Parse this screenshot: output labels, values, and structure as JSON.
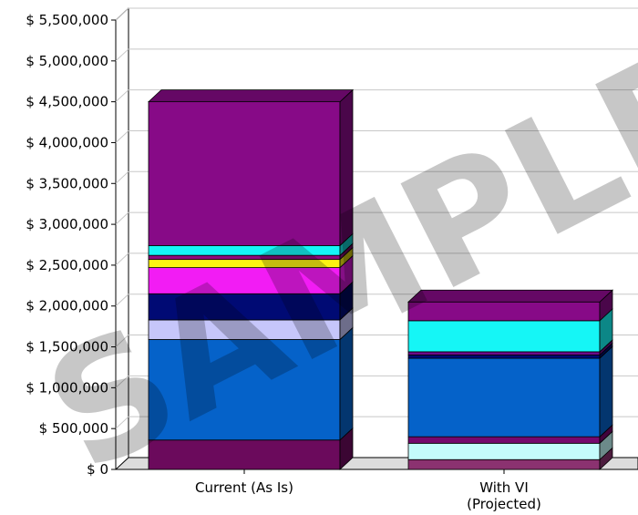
{
  "watermark": "SAMPLE",
  "chart_data": {
    "type": "bar",
    "stacked": true,
    "three_d": true,
    "grid": true,
    "ylim": [
      0,
      5500000
    ],
    "yticks": [
      {
        "value": 0,
        "label": "$ 0"
      },
      {
        "value": 500000,
        "label": "$ 500,000"
      },
      {
        "value": 1000000,
        "label": "$ 1,000,000"
      },
      {
        "value": 1500000,
        "label": "$ 1,500,000"
      },
      {
        "value": 2000000,
        "label": "$ 2,000,000"
      },
      {
        "value": 2500000,
        "label": "$ 2,500,000"
      },
      {
        "value": 3000000,
        "label": "$ 3,000,000"
      },
      {
        "value": 3500000,
        "label": "$ 3,500,000"
      },
      {
        "value": 4000000,
        "label": "$ 4,000,000"
      },
      {
        "value": 4500000,
        "label": "$ 4,500,000"
      },
      {
        "value": 5000000,
        "label": "$ 5,000,000"
      },
      {
        "value": 5500000,
        "label": "$ 5,500,000"
      }
    ],
    "categories": [
      {
        "label_lines": [
          "Current (As Is)"
        ]
      },
      {
        "label_lines": [
          "With VI",
          "(Projected)"
        ]
      }
    ],
    "series": [
      {
        "color": "#6b0a5c",
        "values": [
          360000,
          0
        ]
      },
      {
        "color": "#8b3270",
        "values": [
          0,
          120000
        ]
      },
      {
        "color": "#c4fbfb",
        "values": [
          0,
          200000
        ]
      },
      {
        "color": "#76086d",
        "values": [
          0,
          80000
        ]
      },
      {
        "color": "#0562c9",
        "values": [
          1230000,
          960000
        ]
      },
      {
        "color": "#c6c6fa",
        "values": [
          240000,
          0
        ]
      },
      {
        "color": "#000a74",
        "values": [
          320000,
          40000
        ]
      },
      {
        "color": "#6c0a8a",
        "values": [
          0,
          40000
        ]
      },
      {
        "color": "#f21cf4",
        "values": [
          320000,
          0
        ]
      },
      {
        "color": "#fcf212",
        "values": [
          100000,
          0
        ]
      },
      {
        "color": "#8e0d7d",
        "values": [
          50000,
          0
        ]
      },
      {
        "color": "#15f6f6",
        "values": [
          120000,
          380000
        ]
      },
      {
        "color": "#870a87",
        "values": [
          1760000,
          230000
        ]
      }
    ]
  }
}
